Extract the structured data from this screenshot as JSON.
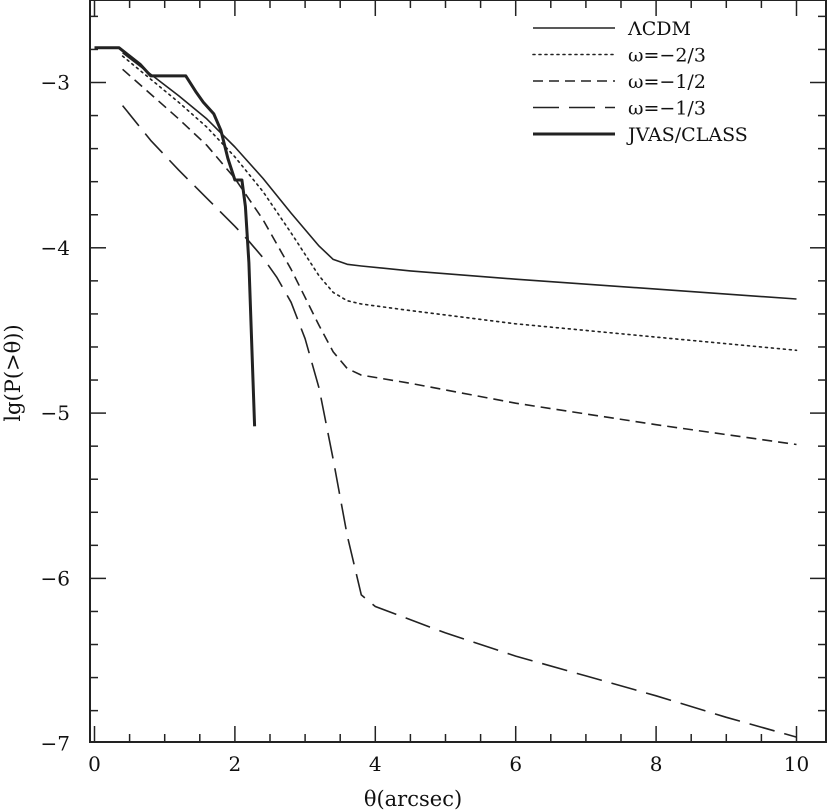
{
  "chart_data": {
    "type": "line",
    "title": "",
    "xlabel": "θ(arcsec)",
    "ylabel": "lg(P(>θ))",
    "xlim": [
      -0.1,
      10.4
    ],
    "ylim": [
      -7,
      -2.5
    ],
    "x_ticks": [
      0,
      2,
      4,
      6,
      8,
      10
    ],
    "y_ticks": [
      -7,
      -6,
      -5,
      -4,
      -3
    ],
    "x_tick_labels": [
      "0",
      "2",
      "4",
      "6",
      "8",
      "10"
    ],
    "y_tick_labels": [
      "−7",
      "−6",
      "−5",
      "−4",
      "−3"
    ],
    "grid": false,
    "legend_position": "top-right",
    "series": [
      {
        "name": "ΛCDM",
        "style": "solid",
        "width": 1.6,
        "color": "#222222",
        "x": [
          0.4,
          0.8,
          1.2,
          1.6,
          2.0,
          2.4,
          2.8,
          3.2,
          3.4,
          3.6,
          3.8,
          4.5,
          6.0,
          8.0,
          10.0
        ],
        "y": [
          -2.82,
          -2.95,
          -3.08,
          -3.22,
          -3.39,
          -3.58,
          -3.79,
          -3.99,
          -4.07,
          -4.1,
          -4.11,
          -4.14,
          -4.19,
          -4.25,
          -4.31
        ]
      },
      {
        "name": "ω=−2/3",
        "style": "dotted",
        "width": 1.6,
        "color": "#222222",
        "x": [
          0.4,
          0.8,
          1.2,
          1.6,
          2.0,
          2.4,
          2.8,
          3.2,
          3.4,
          3.6,
          3.8,
          4.5,
          6.0,
          8.0,
          10.0
        ],
        "y": [
          -2.84,
          -2.98,
          -3.12,
          -3.27,
          -3.45,
          -3.66,
          -3.91,
          -4.17,
          -4.27,
          -4.32,
          -4.34,
          -4.38,
          -4.46,
          -4.54,
          -4.62
        ]
      },
      {
        "name": "ω=−1/2",
        "style": "short-dash",
        "width": 1.6,
        "color": "#222222",
        "x": [
          0.4,
          0.8,
          1.2,
          1.6,
          2.0,
          2.4,
          2.8,
          3.2,
          3.4,
          3.6,
          3.8,
          4.5,
          6.0,
          8.0,
          10.0
        ],
        "y": [
          -2.92,
          -3.07,
          -3.22,
          -3.38,
          -3.58,
          -3.83,
          -4.13,
          -4.47,
          -4.63,
          -4.73,
          -4.77,
          -4.82,
          -4.94,
          -5.07,
          -5.19
        ]
      },
      {
        "name": "ω=−1/3",
        "style": "long-dash",
        "width": 1.6,
        "color": "#222222",
        "x": [
          0.4,
          0.8,
          1.2,
          1.6,
          2.0,
          2.2,
          2.4,
          2.6,
          2.8,
          3.0,
          3.2,
          3.4,
          3.6,
          3.8,
          4.0,
          5.0,
          6.0,
          7.0,
          8.0,
          9.0,
          10.0
        ],
        "y": [
          -3.14,
          -3.35,
          -3.53,
          -3.7,
          -3.87,
          -3.96,
          -4.06,
          -4.18,
          -4.33,
          -4.55,
          -4.85,
          -5.28,
          -5.74,
          -6.1,
          -6.17,
          -6.33,
          -6.47,
          -6.59,
          -6.71,
          -6.84,
          -6.96
        ]
      },
      {
        "name": "JVAS/CLASS",
        "style": "solid",
        "width": 3,
        "color": "#222222",
        "x": [
          0.0,
          0.35,
          0.5,
          0.65,
          0.8,
          1.1,
          1.3,
          1.45,
          1.55,
          1.7,
          1.8,
          1.9,
          2.0,
          2.1,
          2.15,
          2.2,
          2.28
        ],
        "y": [
          -2.79,
          -2.79,
          -2.84,
          -2.89,
          -2.96,
          -2.96,
          -2.96,
          -3.06,
          -3.12,
          -3.19,
          -3.29,
          -3.46,
          -3.59,
          -3.59,
          -3.75,
          -4.09,
          -5.08
        ]
      }
    ]
  }
}
